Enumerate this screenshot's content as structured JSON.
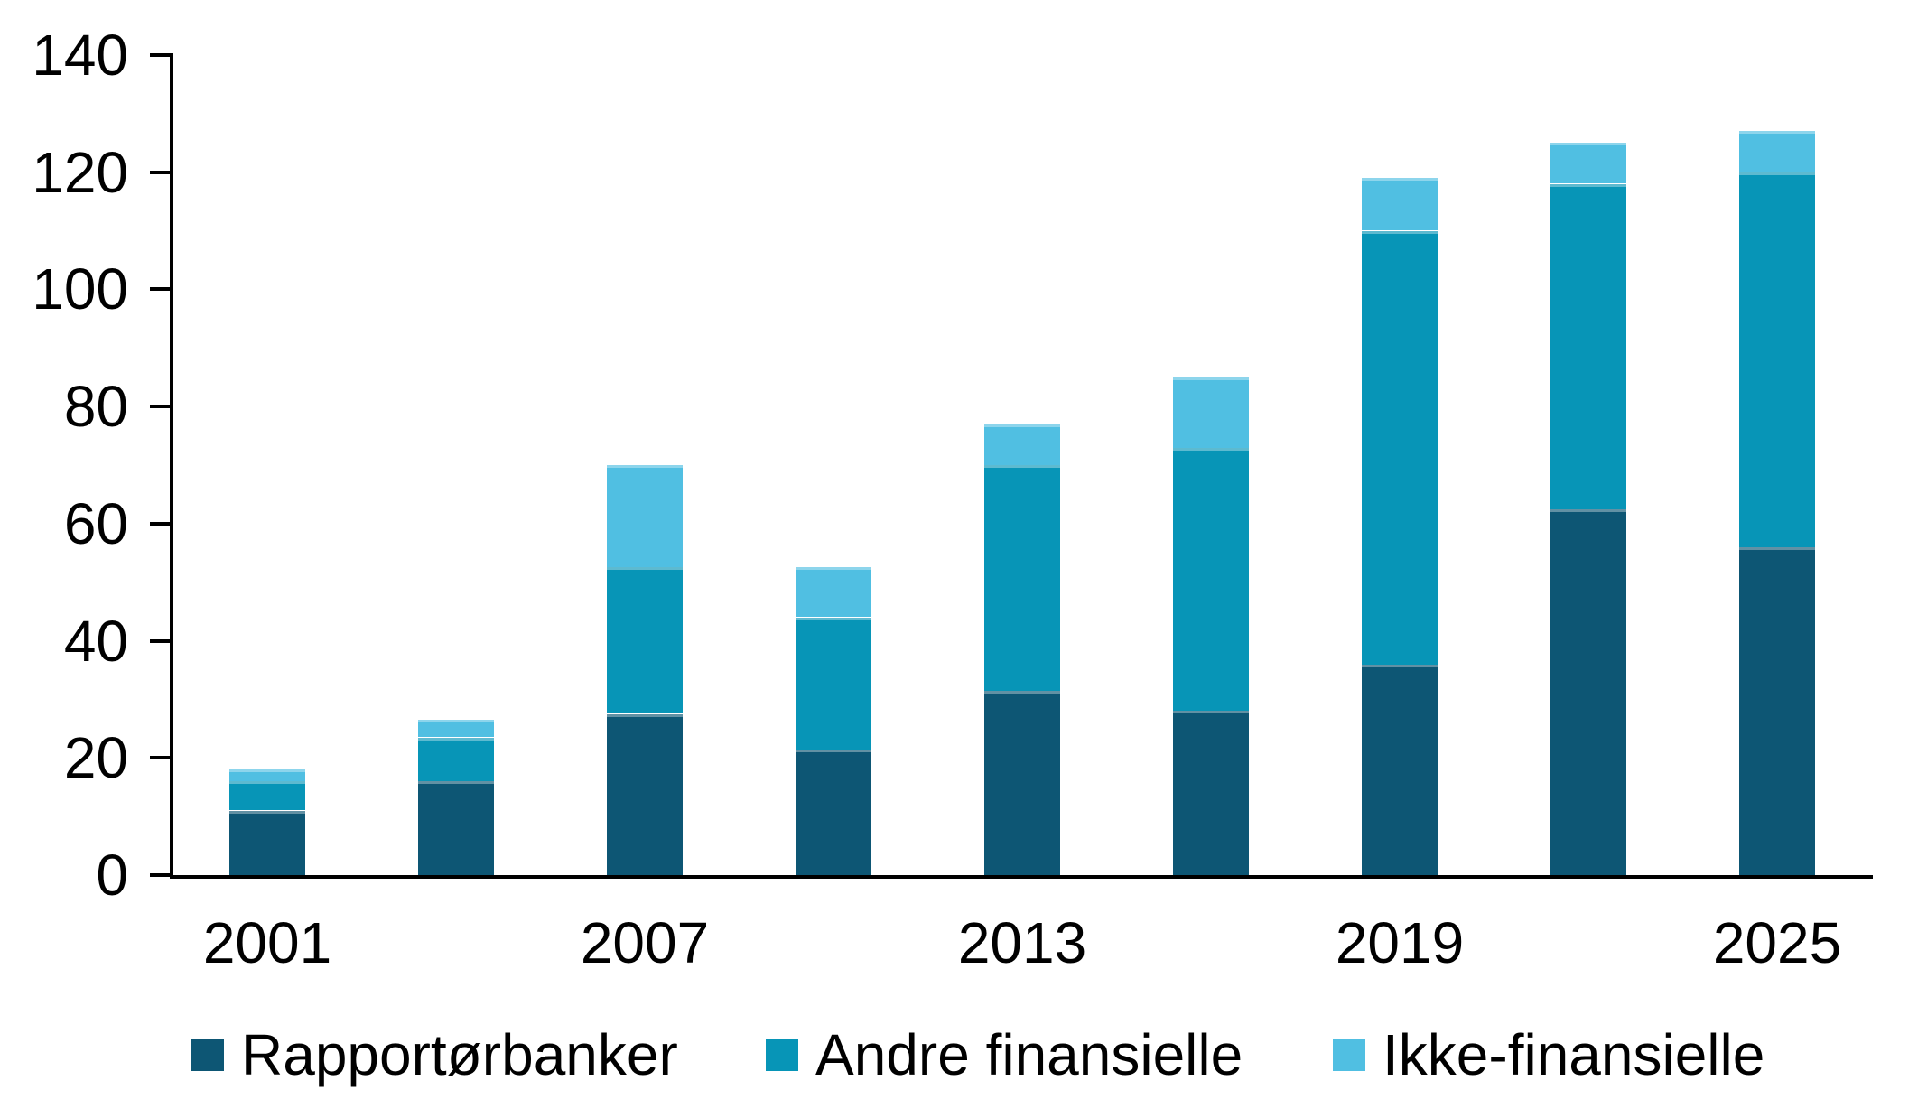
{
  "chart_data": {
    "type": "bar",
    "stacked": true,
    "title": "",
    "xlabel": "",
    "ylabel": "",
    "categories": [
      "2001",
      "2004",
      "2007",
      "2010",
      "2013",
      "2016",
      "2019",
      "2022",
      "2025"
    ],
    "series": [
      {
        "name": "Rapportørbanker",
        "color": "#0d5674",
        "values": [
          11,
          16,
          27.5,
          21.5,
          31.5,
          28,
          36,
          62.5,
          56
        ]
      },
      {
        "name": "Andre finansielle",
        "color": "#0795b7",
        "values": [
          5,
          7.5,
          25,
          22.5,
          38.5,
          45,
          74,
          55.5,
          64
        ]
      },
      {
        "name": "Ikke-finansielle",
        "color": "#50bfe2",
        "values": [
          2,
          3,
          17.5,
          8.5,
          7,
          12,
          9,
          7,
          7
        ]
      }
    ],
    "totals": [
      18,
      26.5,
      70,
      52.5,
      77,
      85,
      119,
      125,
      127
    ],
    "y_ticks": [
      0,
      20,
      40,
      60,
      80,
      100,
      120,
      140
    ],
    "ylim": [
      0,
      140
    ],
    "x_tick_labels": [
      "2001",
      "2007",
      "2013",
      "2019",
      "2025"
    ],
    "x_labeled_category_indices": [
      0,
      2,
      4,
      6,
      8
    ],
    "grid": false,
    "legend_position": "bottom",
    "axis_color": "#000000",
    "text_color": "#000000",
    "background_color": "#ffffff"
  }
}
